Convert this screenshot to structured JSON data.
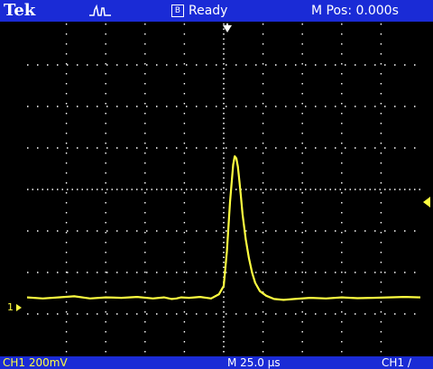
{
  "header": {
    "brand": "Tek",
    "acquisition_icon": "pulse-waveform-icon",
    "trigger_source_badge": "B",
    "status": "Ready",
    "horizontal_position": "M Pos: 0.000s"
  },
  "footer": {
    "ch1_scale": "CH1  200mV",
    "time_scale": "M 25.0 µs",
    "trigger_info": "CH1  ∕"
  },
  "markers": {
    "ch1_ground_label": "1"
  },
  "colors": {
    "header_bar": "#1a2bd6",
    "trace": "#ffff40",
    "graticule": "#ffffff",
    "background": "#000000"
  },
  "chart_data": {
    "type": "line",
    "title": "",
    "xlabel": "",
    "ylabel": "",
    "x_divisions": 10,
    "y_divisions": 8,
    "x_units_per_div": "25.0 µs",
    "y_units_per_div": "200mV",
    "xlim": [
      -125,
      125
    ],
    "ylim": [
      -800,
      800
    ],
    "grid": true,
    "series": [
      {
        "x": [
          -125,
          -115,
          -105,
          -95,
          -85,
          -75,
          -65,
          -55,
          -45,
          -38,
          -33,
          -30,
          -27,
          -22,
          -15,
          -8,
          -3,
          0,
          2,
          4,
          6,
          7,
          8,
          9,
          10,
          11,
          12,
          14,
          16,
          18,
          20,
          23,
          27,
          32,
          38,
          45,
          55,
          65,
          75,
          85,
          95,
          105,
          115,
          125
        ],
        "y": [
          -520,
          -525,
          -520,
          -515,
          -525,
          -520,
          -522,
          -518,
          -525,
          -520,
          -528,
          -525,
          -520,
          -522,
          -518,
          -525,
          -505,
          -465,
          -300,
          -60,
          120,
          160,
          150,
          110,
          40,
          -40,
          -120,
          -240,
          -330,
          -400,
          -450,
          -490,
          -512,
          -528,
          -532,
          -528,
          -522,
          -525,
          -520,
          -524,
          -522,
          -520,
          -518,
          -520
        ]
      }
    ]
  }
}
